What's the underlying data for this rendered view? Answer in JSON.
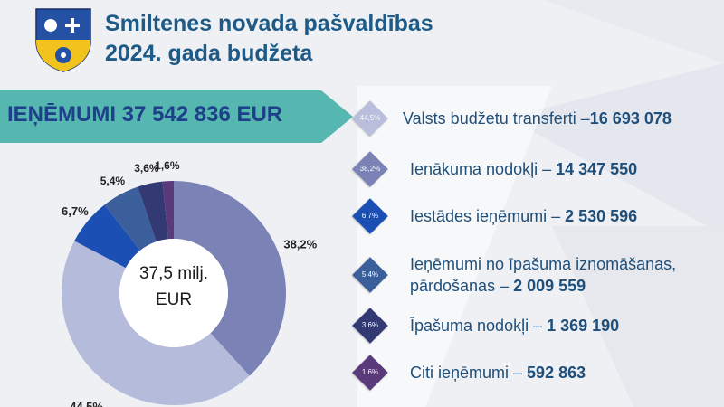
{
  "header": {
    "title_line1": "Smiltenes novada pašvaldības",
    "title_line2": "2024. gada budžeta"
  },
  "banner": {
    "text": "IEŅĒMUMI 37 542 836 EUR"
  },
  "center": {
    "line1": "37,5 milj.",
    "line2": "EUR"
  },
  "colors": {
    "title": "#1e5a86",
    "banner": "#56b6b0",
    "banner_text": "#1e3f8a",
    "background": "#eef0f4"
  },
  "chart_data": {
    "type": "pie",
    "categories": [
      "Valsts budžetu transferti",
      "Ienākuma nodokļi",
      "Iestādes ieņēmumi",
      "Ieņēmumi no īpašuma iznomāšanas, pārdošanas",
      "Īpašuma nodokļi",
      "Citi ieņēmumi"
    ],
    "values": [
      44.5,
      38.2,
      6.7,
      5.4,
      3.6,
      1.6
    ],
    "data_labels": [
      "44,5%",
      "38,2%",
      "6,7%",
      "5,4%",
      "3,6%",
      "1,6%"
    ],
    "colors": [
      "#b5bbda",
      "#7a82b6",
      "#1b4fb4",
      "#3a5f9a",
      "#333a73",
      "#5a3a7a"
    ],
    "donut": true
  },
  "legend": {
    "items": [
      {
        "pct": "44,5%",
        "label": "Valsts budžetu transferti –",
        "value": "16 693 078",
        "color": "#b9bedd"
      },
      {
        "pct": "38,2%",
        "label": "Ienākuma nodokļi – ",
        "value": "14 347 550",
        "color": "#7a82b6"
      },
      {
        "pct": "6,7%",
        "label": "Iestādes ieņēmumi – ",
        "value": "2 530 596",
        "color": "#1b4fb4"
      },
      {
        "pct": "5,4%",
        "label": "Ieņēmumi no īpašuma iznomāšanas,",
        "label2": "pārdošanas – ",
        "value": "2 009 559",
        "color": "#3a5f9a"
      },
      {
        "pct": "3,6%",
        "label": "Īpašuma nodokļi – ",
        "value": "1 369 190",
        "color": "#333a73"
      },
      {
        "pct": "1,6%",
        "label": "Citi ieņēmumi – ",
        "value": "592 863",
        "color": "#5a3a7a"
      }
    ]
  }
}
